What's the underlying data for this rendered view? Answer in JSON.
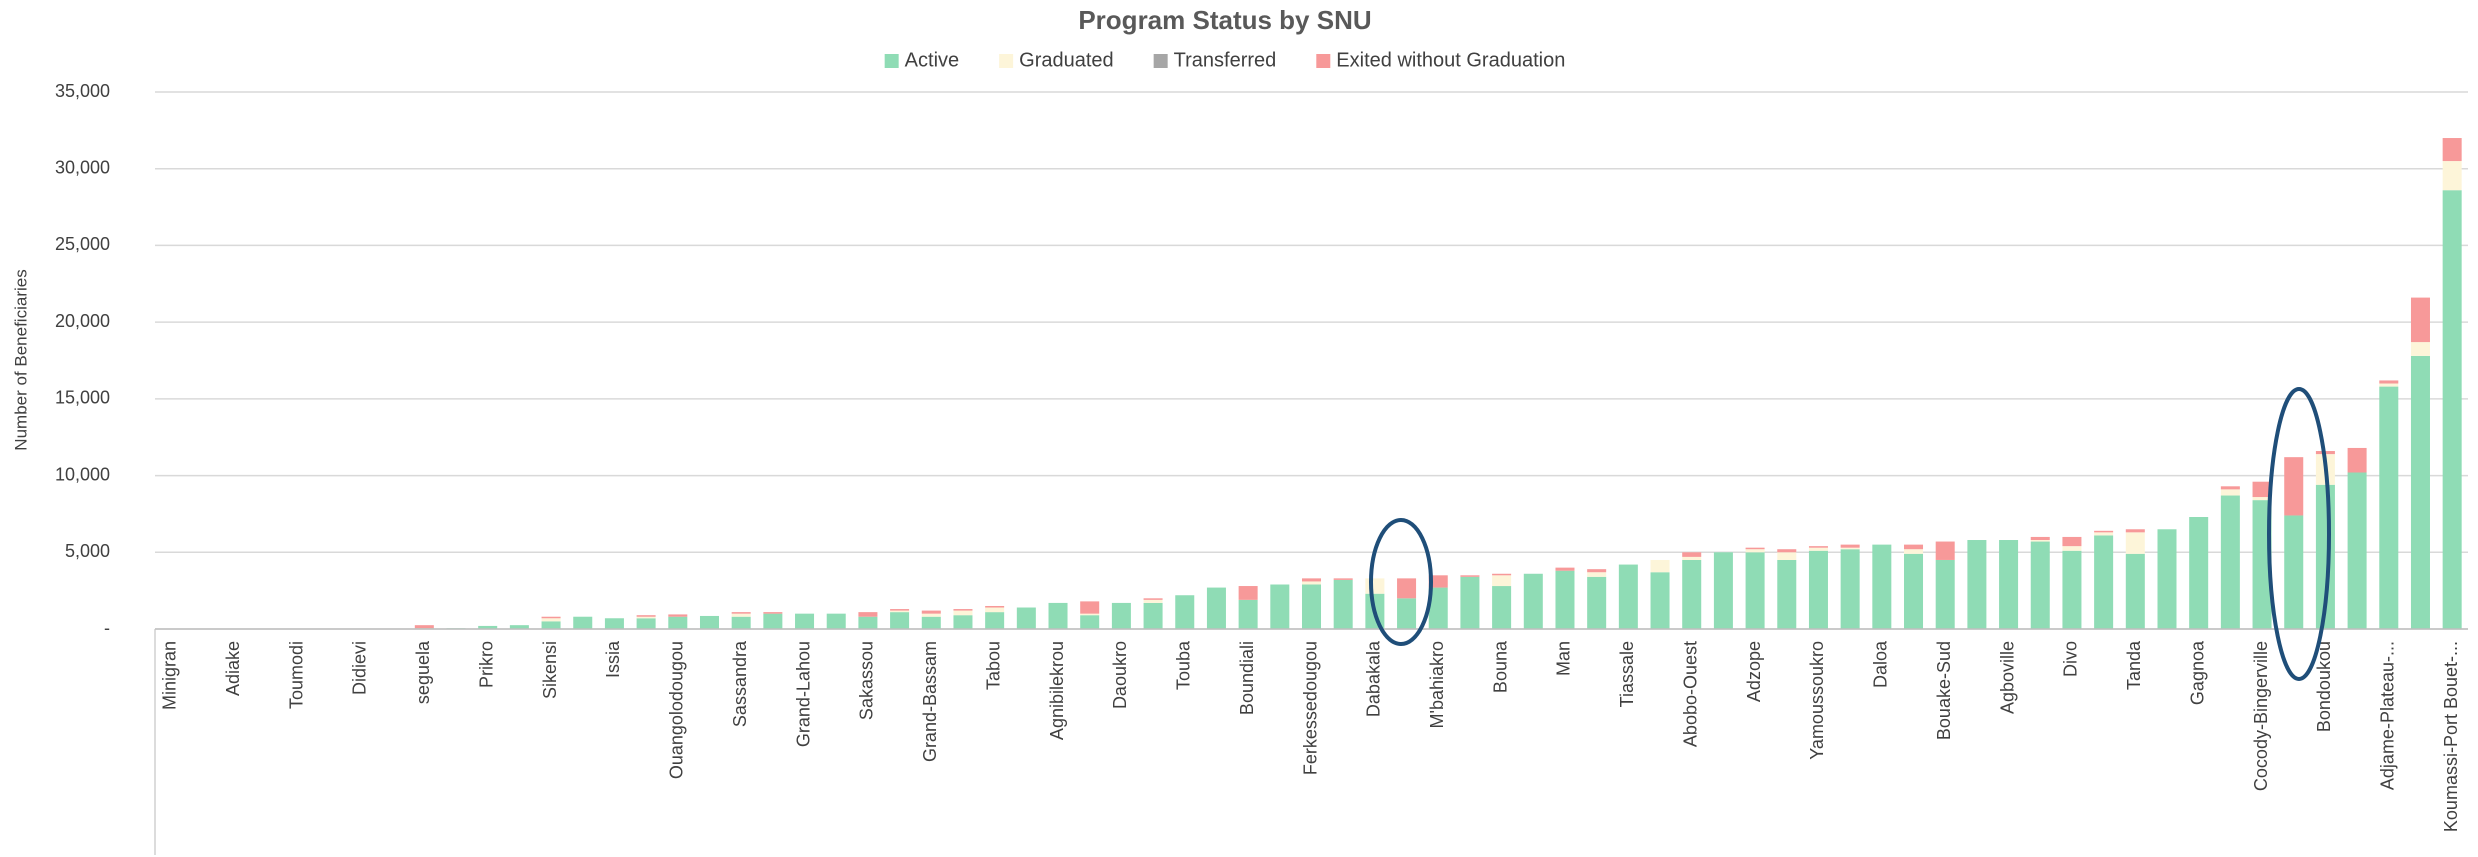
{
  "chart_data": {
    "type": "stacked_bar",
    "title": "Program Status by SNU",
    "y_axis_label": "Number of Beneficiaries",
    "categories": [
      "Minigran",
      null,
      "Adiake",
      null,
      "Toumodi",
      null,
      "Didievi",
      null,
      "seguela",
      null,
      "Prikro",
      null,
      "Sikensi",
      null,
      "Issia",
      null,
      "Ouangolodougou",
      null,
      "Sassandra",
      null,
      "Grand-Lahou",
      null,
      "Sakassou",
      null,
      "Grand-Bassam",
      null,
      "Tabou",
      null,
      "Agnibilekrou",
      null,
      "Daoukro",
      null,
      "Touba",
      null,
      "Boundiali",
      null,
      "Ferkessedougou",
      null,
      "Dabakala",
      null,
      "M'bahiakro",
      null,
      "Bouna",
      null,
      "Man",
      null,
      "Tiassale",
      null,
      "Abobo-Ouest",
      null,
      "Adzope",
      null,
      "Yamoussoukro",
      null,
      "Daloa",
      null,
      "Bouake-Sud",
      null,
      "Agboville",
      null,
      "Divo",
      null,
      "Tanda",
      null,
      "Gagnoa",
      null,
      "Cocody-Bingerville",
      null,
      "Bondoukou",
      null,
      "Adjame-Plateau-...",
      null,
      "Koumassi-Port Bouet-..."
    ],
    "series": [
      {
        "name": "Active",
        "color": "#8fdcb5",
        "values": [
          0,
          0,
          0,
          0,
          0,
          0,
          0,
          0,
          50,
          50,
          200,
          250,
          500,
          800,
          700,
          700,
          800,
          850,
          800,
          1000,
          1000,
          1000,
          800,
          1100,
          800,
          900,
          1100,
          1400,
          1700,
          900,
          1700,
          1700,
          2200,
          2700,
          1900,
          2900,
          2900,
          3200,
          2300,
          2000,
          2700,
          3400,
          2800,
          3600,
          3800,
          3400,
          4200,
          3700,
          4500,
          5000,
          5000,
          4500,
          5100,
          5200,
          5500,
          4900,
          4500,
          5800,
          5800,
          5700,
          5100,
          6100,
          4900,
          6500,
          7300,
          8700,
          8400,
          7400,
          9400,
          10200,
          15800,
          17800,
          28600
        ]
      },
      {
        "name": "Graduated",
        "color": "#fdf5d9",
        "values": [
          0,
          0,
          0,
          0,
          0,
          0,
          0,
          0,
          0,
          0,
          0,
          0,
          200,
          0,
          0,
          100,
          0,
          0,
          200,
          0,
          0,
          0,
          0,
          100,
          200,
          300,
          300,
          0,
          0,
          100,
          0,
          200,
          0,
          0,
          0,
          0,
          200,
          0,
          1000,
          0,
          0,
          0,
          700,
          0,
          0,
          300,
          0,
          800,
          200,
          0,
          200,
          500,
          200,
          100,
          0,
          300,
          0,
          0,
          0,
          100,
          300,
          200,
          1400,
          0,
          0,
          400,
          200,
          0,
          2000,
          0,
          200,
          900,
          1900
        ]
      },
      {
        "name": "Transferred",
        "color": "#a6a6a6",
        "values": [
          0,
          0,
          0,
          0,
          0,
          0,
          0,
          0,
          0,
          0,
          0,
          0,
          0,
          0,
          0,
          0,
          0,
          0,
          0,
          0,
          0,
          0,
          0,
          0,
          0,
          0,
          0,
          0,
          0,
          0,
          0,
          0,
          0,
          0,
          0,
          0,
          0,
          0,
          0,
          0,
          0,
          0,
          0,
          0,
          0,
          0,
          0,
          0,
          0,
          0,
          0,
          0,
          0,
          0,
          0,
          0,
          0,
          0,
          0,
          0,
          0,
          0,
          0,
          0,
          0,
          0,
          0,
          0,
          0,
          0,
          0,
          0,
          0
        ]
      },
      {
        "name": "Exited without Graduation",
        "color": "#f79999",
        "values": [
          0,
          0,
          0,
          0,
          0,
          0,
          0,
          0,
          200,
          0,
          0,
          0,
          100,
          0,
          0,
          100,
          150,
          0,
          100,
          100,
          0,
          0,
          300,
          100,
          200,
          100,
          100,
          0,
          0,
          800,
          0,
          100,
          0,
          0,
          900,
          0,
          200,
          100,
          0,
          1300,
          800,
          100,
          100,
          0,
          200,
          200,
          0,
          0,
          300,
          0,
          100,
          200,
          100,
          200,
          0,
          300,
          1200,
          0,
          0,
          200,
          600,
          100,
          200,
          0,
          0,
          200,
          1000,
          3800,
          200,
          1600,
          200,
          2900,
          1500
        ]
      }
    ],
    "ylim": [
      0,
      35000
    ],
    "yticks": [
      {
        "value": 0,
        "label": "-"
      },
      {
        "value": 5000,
        "label": "5,000"
      },
      {
        "value": 10000,
        "label": "10,000"
      },
      {
        "value": 15000,
        "label": "15,000"
      },
      {
        "value": 20000,
        "label": "20,000"
      },
      {
        "value": 25000,
        "label": "25,000"
      },
      {
        "value": 30000,
        "label": "30,000"
      },
      {
        "value": 35000,
        "label": "35,000"
      }
    ],
    "grid": true,
    "legend": "top"
  }
}
